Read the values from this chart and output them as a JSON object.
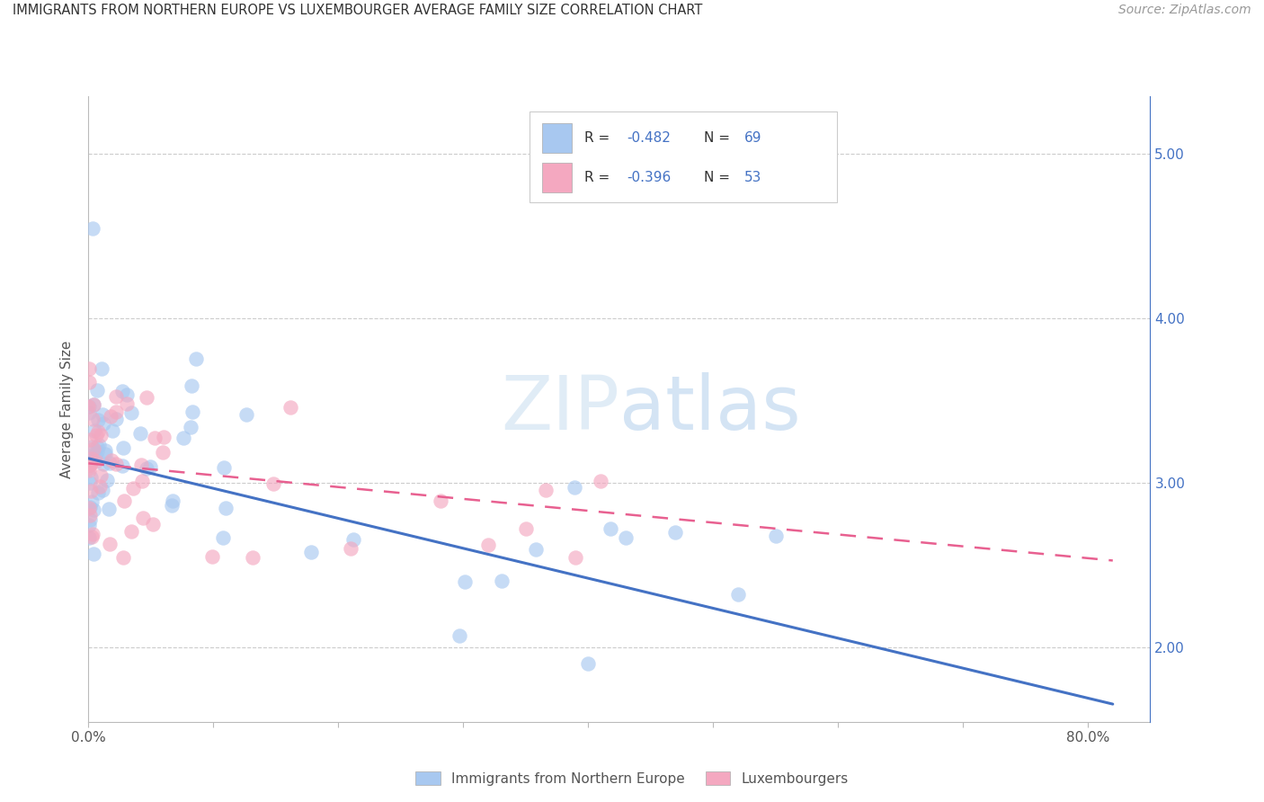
{
  "title": "IMMIGRANTS FROM NORTHERN EUROPE VS LUXEMBOURGER AVERAGE FAMILY SIZE CORRELATION CHART",
  "source": "Source: ZipAtlas.com",
  "ylabel": "Average Family Size",
  "right_yticks": [
    2.0,
    3.0,
    4.0,
    5.0
  ],
  "blue_R": -0.482,
  "blue_N": 69,
  "pink_R": -0.396,
  "pink_N": 53,
  "legend_label_blue": "Immigrants from Northern Europe",
  "legend_label_pink": "Luxembourgers",
  "blue_color": "#A8C8F0",
  "pink_color": "#F4A8C0",
  "blue_line_color": "#4472C4",
  "pink_line_color": "#E86090",
  "watermark_color": "#D8EAF8",
  "seed": 42,
  "xlim": [
    0.0,
    0.85
  ],
  "ylim": [
    1.55,
    5.35
  ],
  "blue_a": 3.15,
  "blue_b": -1.82,
  "pink_a": 3.12,
  "pink_b": -0.72,
  "blue_noise": 0.32,
  "pink_noise": 0.28
}
